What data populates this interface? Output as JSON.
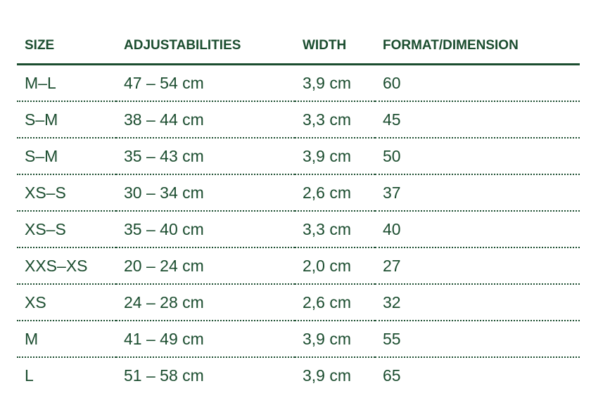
{
  "table": {
    "headers": [
      "SIZE",
      "ADJUSTABILITIES",
      "WIDTH",
      "FORMAT/DIMENSION"
    ],
    "rows": [
      [
        "M–L",
        "47 – 54 cm",
        "3,9 cm",
        "60"
      ],
      [
        "S–M",
        "38 – 44 cm",
        "3,3 cm",
        "45"
      ],
      [
        "S–M",
        "35 – 43 cm",
        "3,9 cm",
        "50"
      ],
      [
        "XS–S",
        "30 – 34 cm",
        "2,6 cm",
        "37"
      ],
      [
        "XS–S",
        "35 – 40 cm",
        "3,3 cm",
        "40"
      ],
      [
        "XXS–XS",
        "20 – 24 cm",
        "2,0 cm",
        "27"
      ],
      [
        "XS",
        "24 – 28 cm",
        "2,6 cm",
        "32"
      ],
      [
        "M",
        "41 – 49 cm",
        "3,9 cm",
        "55"
      ],
      [
        "L",
        "51 – 58 cm",
        "3,9 cm",
        "65"
      ]
    ]
  },
  "colors": {
    "text": "#1b4d2f"
  }
}
